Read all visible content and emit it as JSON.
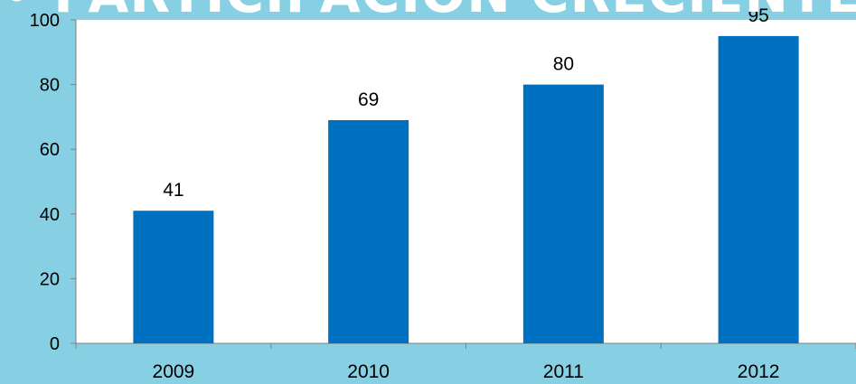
{
  "slide": {
    "title": "• PARTICIPACIÓN CRECIENTE",
    "background_color": "#87cfe3"
  },
  "chart_data": {
    "type": "bar",
    "title": "",
    "xlabel": "",
    "ylabel": "",
    "categories": [
      "2009",
      "2010",
      "2011",
      "2012"
    ],
    "values": [
      41,
      69,
      80,
      95
    ],
    "ylim": [
      0,
      100
    ],
    "yticks": [
      0,
      20,
      40,
      60,
      80,
      100
    ],
    "grid": false,
    "legend": "none",
    "data_labels": true,
    "bar_color": "#0070c0",
    "plot_background": "#ffffff"
  }
}
